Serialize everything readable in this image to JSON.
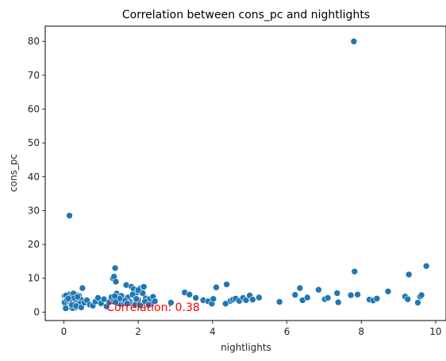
{
  "chart_data": {
    "type": "scatter",
    "title": "Correlation between cons_pc and nightlights",
    "xlabel": "nightlights",
    "ylabel": "cons_pc",
    "xlim": [
      -0.5,
      10.3
    ],
    "ylim": [
      -2.5,
      84.5
    ],
    "xticks": [
      0,
      2,
      4,
      6,
      8,
      10
    ],
    "xtick_labels": [
      "0",
      "2",
      "4",
      "6",
      "8",
      "10"
    ],
    "yticks": [
      0,
      10,
      20,
      30,
      40,
      50,
      60,
      70,
      80
    ],
    "ytick_labels": [
      "0",
      "10",
      "20",
      "30",
      "40",
      "50",
      "60",
      "70",
      "80"
    ],
    "grid": false,
    "point_color": "#1f77b4",
    "annotation": {
      "text": "Correlation: 0.38",
      "x": 1.15,
      "y": 0.5,
      "color": "#ff0000"
    },
    "x": [
      0.02,
      0.03,
      0.04,
      0.05,
      0.06,
      0.07,
      0.08,
      0.1,
      0.12,
      0.14,
      0.16,
      0.18,
      0.2,
      0.22,
      0.25,
      0.28,
      0.3,
      0.32,
      0.35,
      0.38,
      0.4,
      0.42,
      0.45,
      0.48,
      0.5,
      0.03,
      0.06,
      0.09,
      0.13,
      0.17,
      0.21,
      0.26,
      0.31,
      0.36,
      0.41,
      0.46,
      0.05,
      0.11,
      0.19,
      0.27,
      0.34,
      0.43,
      0.15,
      0.24,
      0.37,
      0.02,
      0.08,
      0.22,
      0.33,
      0.12,
      0.47,
      0.55,
      0.62,
      0.7,
      0.78,
      0.85,
      0.92,
      1.0,
      1.08,
      1.15,
      1.22,
      1.28,
      1.32,
      1.35,
      1.38,
      1.4,
      1.42,
      1.45,
      1.48,
      1.52,
      1.58,
      1.62,
      1.68,
      1.72,
      1.78,
      1.82,
      1.88,
      1.92,
      1.96,
      2.0,
      2.05,
      2.1,
      2.15,
      2.2,
      2.25,
      2.3,
      2.35,
      2.4,
      2.45,
      1.55,
      1.65,
      1.75,
      1.85,
      1.95,
      2.05,
      2.12,
      2.18,
      1.5,
      1.7,
      2.0,
      2.28,
      1.35,
      1.37,
      1.39,
      0.15,
      2.88,
      3.25,
      3.38,
      3.55,
      3.75,
      3.88,
      3.98,
      4.1,
      4.38,
      4.48,
      4.55,
      4.62,
      4.72,
      4.82,
      4.9,
      5.0,
      5.08,
      5.25,
      5.8,
      6.22,
      6.35,
      6.42,
      6.55,
      6.85,
      7.02,
      7.1,
      7.35,
      7.38,
      7.72,
      7.82,
      7.9,
      8.22,
      8.32,
      8.42,
      8.72,
      9.18,
      9.25,
      9.28,
      9.52,
      9.58,
      9.62,
      9.75,
      4.02,
      4.35,
      7.8
    ],
    "y": [
      4.7,
      3.2,
      2.1,
      1.4,
      3.8,
      2.6,
      4.2,
      1.8,
      3.5,
      5.2,
      2.9,
      4.0,
      1.6,
      3.3,
      4.6,
      2.2,
      3.9,
      1.3,
      5.0,
      2.7,
      4.4,
      3.1,
      1.9,
      3.6,
      7.1,
      2.4,
      4.9,
      3.0,
      1.5,
      4.3,
      2.8,
      5.5,
      3.4,
      2.0,
      4.8,
      3.7,
      1.1,
      3.9,
      2.3,
      4.1,
      1.7,
      2.5,
      3.2,
      1.2,
      4.5,
      2.9,
      3.6,
      2.1,
      1.8,
      4.0,
      1.4,
      2.8,
      3.5,
      2.2,
      1.9,
      3.1,
      4.2,
      2.6,
      3.8,
      1.7,
      2.9,
      4.4,
      10.0,
      10.5,
      13.0,
      9.0,
      5.5,
      3.2,
      4.6,
      2.4,
      3.9,
      2.8,
      8.0,
      4.3,
      3.0,
      7.5,
      6.8,
      2.2,
      5.8,
      3.6,
      7.0,
      6.2,
      7.5,
      4.1,
      2.7,
      3.8,
      2.3,
      4.5,
      3.2,
      4.8,
      3.4,
      2.6,
      5.2,
      3.9,
      2.0,
      5.6,
      3.1,
      4.0,
      2.5,
      6.5,
      2.1,
      3.3,
      4.7,
      2.9,
      28.5,
      2.8,
      5.8,
      5.2,
      4.2,
      3.5,
      3.2,
      2.5,
      7.3,
      8.2,
      3.3,
      3.7,
      4.0,
      3.3,
      4.2,
      3.5,
      4.9,
      3.7,
      4.3,
      3.0,
      5.1,
      7.1,
      3.5,
      4.3,
      6.6,
      3.8,
      4.2,
      5.6,
      2.9,
      5.0,
      12.0,
      5.2,
      3.7,
      3.4,
      4.0,
      6.1,
      4.6,
      3.8,
      11.1,
      2.8,
      4.6,
      5.0,
      13.6,
      3.9,
      2.5,
      80.0
    ]
  }
}
